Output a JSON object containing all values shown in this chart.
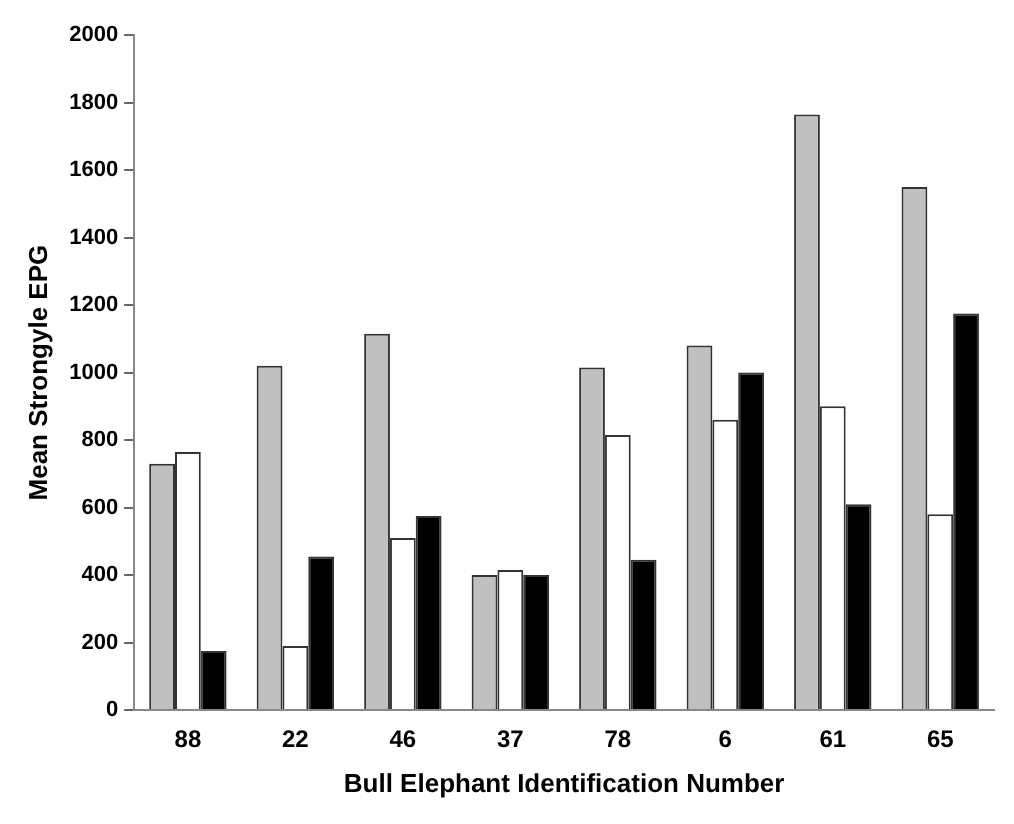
{
  "chart_data": {
    "type": "bar",
    "xlabel": "Bull Elephant Identification Number",
    "ylabel": "Mean Strongyle EPG",
    "categories": [
      "88",
      "22",
      "46",
      "37",
      "78",
      "6",
      "61",
      "65"
    ],
    "series": [
      {
        "color": "#c0c0c0",
        "values": [
          730,
          1020,
          1115,
          400,
          1015,
          1080,
          1765,
          1550
        ]
      },
      {
        "color": "#ffffff",
        "values": [
          765,
          190,
          510,
          415,
          815,
          860,
          900,
          580
        ]
      },
      {
        "color": "#000000",
        "values": [
          175,
          455,
          575,
          400,
          445,
          1000,
          610,
          1175
        ]
      }
    ],
    "ylim": [
      0,
      2000
    ],
    "yticks": [
      0,
      200,
      400,
      600,
      800,
      1000,
      1200,
      1400,
      1600,
      1800,
      2000
    ],
    "grid": false,
    "legend": false
  }
}
